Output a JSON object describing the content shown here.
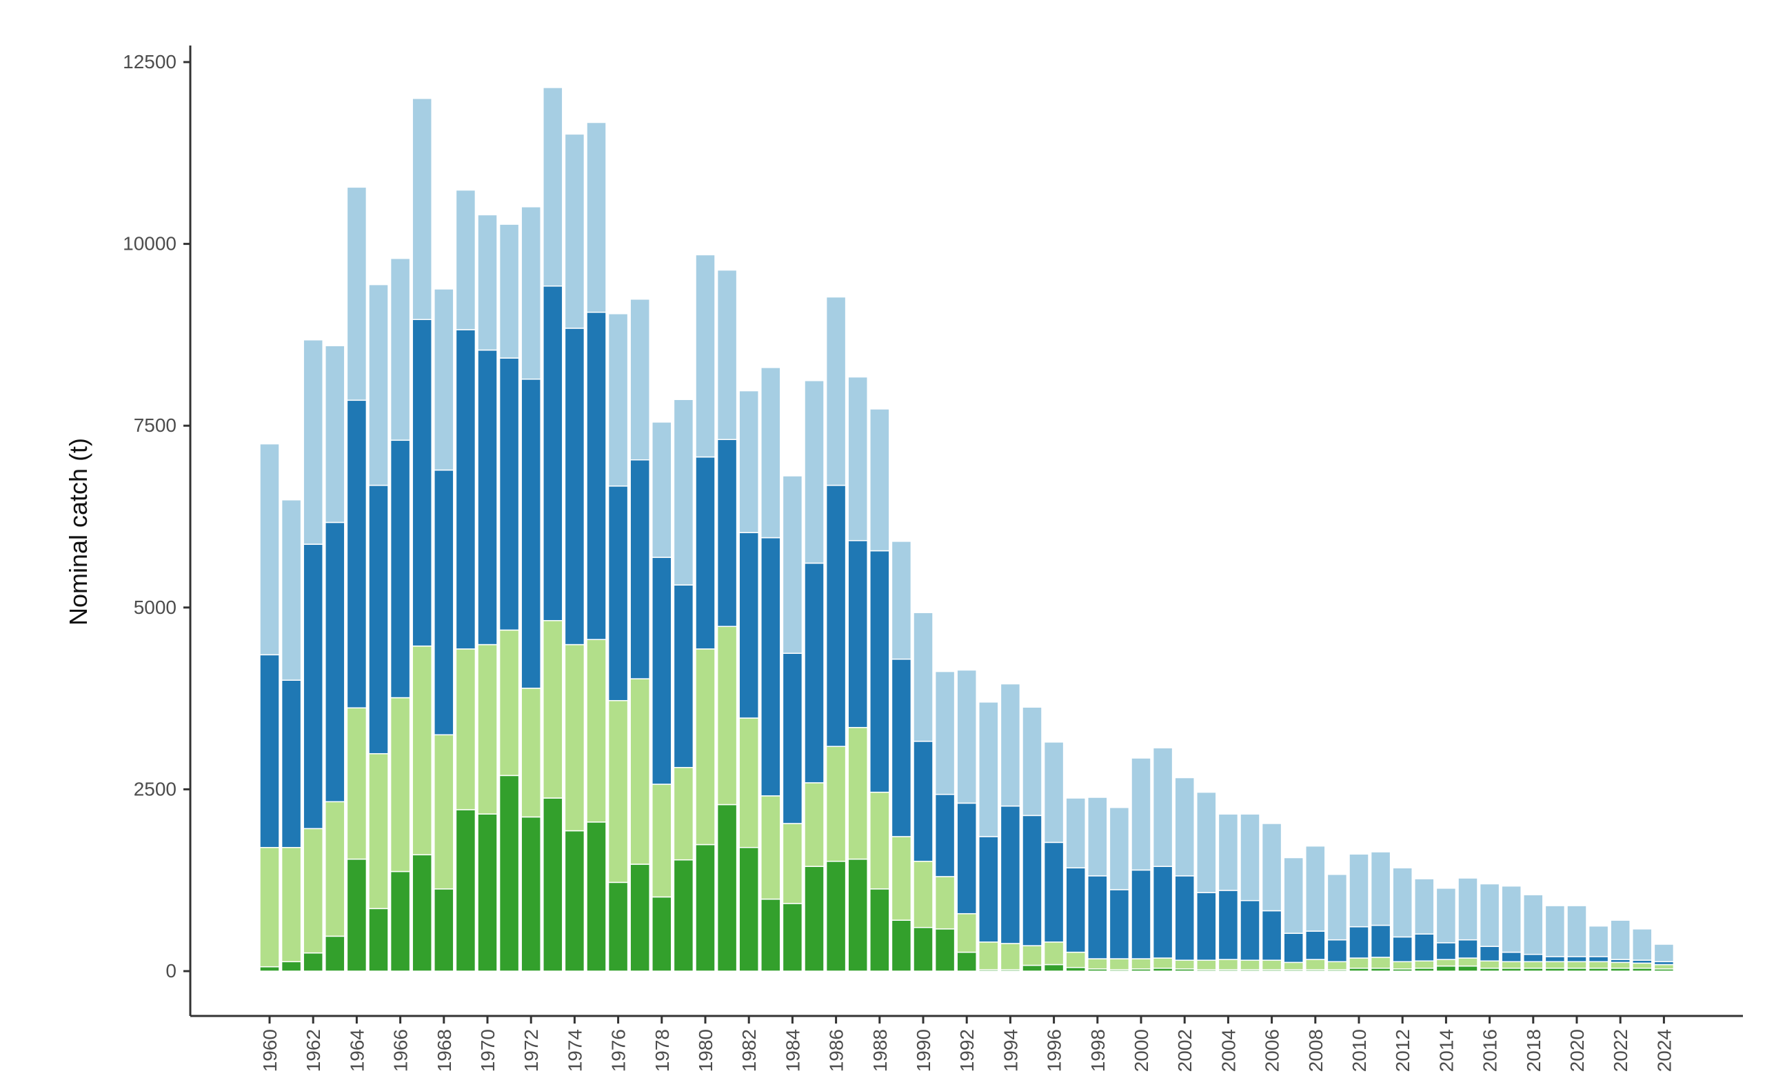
{
  "chart_data": {
    "type": "bar",
    "stacked": true,
    "title": "",
    "xlabel": "",
    "ylabel": "Nominal catch (t)",
    "ylim": [
      0,
      12500
    ],
    "y_ticks": [
      0,
      2500,
      5000,
      7500,
      10000,
      12500
    ],
    "y_tick_labels": [
      "0",
      "2500",
      "5000",
      "7500",
      "10000",
      "12500"
    ],
    "x_tick_labels": [
      "1960",
      "1962",
      "1964",
      "1966",
      "1968",
      "1970",
      "1972",
      "1974",
      "1976",
      "1978",
      "1980",
      "1982",
      "1984",
      "1986",
      "1988",
      "1990",
      "1992",
      "1994",
      "1996",
      "1998",
      "2000",
      "2002",
      "2004",
      "2006",
      "2008",
      "2010",
      "2012",
      "2014",
      "2016",
      "2018",
      "2020",
      "2022",
      "2024"
    ],
    "grid": false,
    "legend": "none",
    "categories": [
      1960,
      1961,
      1962,
      1963,
      1964,
      1965,
      1966,
      1967,
      1968,
      1969,
      1970,
      1971,
      1972,
      1973,
      1974,
      1975,
      1976,
      1977,
      1978,
      1979,
      1980,
      1981,
      1982,
      1983,
      1984,
      1985,
      1986,
      1987,
      1988,
      1989,
      1990,
      1991,
      1992,
      1993,
      1994,
      1995,
      1996,
      1997,
      1998,
      1999,
      2000,
      2001,
      2002,
      2003,
      2004,
      2005,
      2006,
      2007,
      2008,
      2009,
      2010,
      2011,
      2012,
      2013,
      2014,
      2015,
      2016,
      2017,
      2018,
      2019,
      2020,
      2021,
      2022,
      2023,
      2024
    ],
    "series": [
      {
        "color": "#33a02c",
        "values": [
          60,
          130,
          250,
          480,
          1540,
          860,
          1370,
          1600,
          1130,
          2220,
          2160,
          2690,
          2120,
          2380,
          1930,
          2050,
          1220,
          1470,
          1020,
          1530,
          1740,
          2290,
          1700,
          990,
          930,
          1440,
          1510,
          1540,
          1130,
          700,
          600,
          580,
          260,
          20,
          20,
          80,
          90,
          50,
          30,
          20,
          30,
          40,
          30,
          20,
          20,
          20,
          20,
          20,
          20,
          20,
          40,
          40,
          30,
          40,
          70,
          70,
          40,
          40,
          40,
          40,
          40,
          40,
          40,
          40,
          30
        ]
      },
      {
        "color": "#b2df8a",
        "values": [
          1640,
          1570,
          1710,
          1850,
          2080,
          2130,
          2390,
          2870,
          2120,
          2210,
          2330,
          2000,
          1770,
          2440,
          2560,
          2510,
          2500,
          2550,
          1550,
          1270,
          2690,
          2450,
          1780,
          1420,
          1100,
          1150,
          1580,
          1810,
          1330,
          1150,
          910,
          720,
          530,
          380,
          360,
          270,
          310,
          210,
          140,
          150,
          140,
          140,
          120,
          130,
          140,
          130,
          130,
          100,
          140,
          110,
          140,
          150,
          100,
          100,
          90,
          110,
          100,
          90,
          90,
          90,
          90,
          90,
          80,
          70,
          60
        ]
      },
      {
        "color": "#1f78b4",
        "values": [
          2650,
          2300,
          3910,
          3840,
          4230,
          3690,
          3540,
          4490,
          3640,
          4390,
          4050,
          3740,
          4250,
          4600,
          4350,
          4500,
          2950,
          3010,
          3120,
          2510,
          2640,
          2570,
          2550,
          3550,
          2340,
          3020,
          3590,
          2570,
          3320,
          2440,
          1650,
          1130,
          1520,
          1450,
          1890,
          1790,
          1370,
          1160,
          1140,
          950,
          1220,
          1260,
          1160,
          930,
          950,
          820,
          680,
          400,
          390,
          300,
          430,
          440,
          340,
          370,
          230,
          250,
          200,
          130,
          100,
          70,
          70,
          70,
          40,
          40,
          40
        ]
      },
      {
        "color": "#a6cee3",
        "values": [
          2900,
          2480,
          2810,
          2430,
          2930,
          2760,
          2500,
          3040,
          2490,
          1920,
          1860,
          1840,
          2370,
          2730,
          2670,
          2610,
          2370,
          2210,
          1860,
          2550,
          2780,
          2330,
          1950,
          2340,
          2440,
          2510,
          2590,
          2250,
          1950,
          1620,
          1770,
          1690,
          1830,
          1850,
          1680,
          1490,
          1380,
          960,
          1080,
          1130,
          1540,
          1630,
          1350,
          1380,
          1050,
          1190,
          1200,
          1040,
          1170,
          900,
          1000,
          1010,
          950,
          760,
          750,
          850,
          860,
          910,
          820,
          700,
          700,
          420,
          540,
          430,
          240
        ]
      }
    ]
  }
}
